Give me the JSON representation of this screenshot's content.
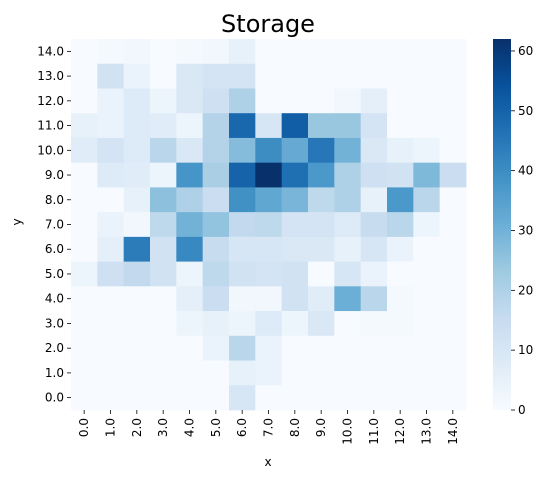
{
  "chart_data": {
    "type": "heatmap",
    "title": "Storage",
    "xlabel": "x",
    "ylabel": "y",
    "x": [
      "0.0",
      "1.0",
      "2.0",
      "3.0",
      "4.0",
      "5.0",
      "6.0",
      "7.0",
      "8.0",
      "9.0",
      "10.0",
      "11.0",
      "12.0",
      "13.0",
      "14.0"
    ],
    "y": [
      "14.0",
      "13.0",
      "12.0",
      "11.0",
      "10.0",
      "9.0",
      "8.0",
      "7.0",
      "6.0",
      "5.0",
      "4.0",
      "3.0",
      "2.0",
      "1.0",
      "0.0"
    ],
    "values": [
      [
        0,
        1,
        2,
        0,
        1,
        2,
        5,
        0,
        0,
        0,
        0,
        0,
        0,
        0,
        0
      ],
      [
        0,
        12,
        4,
        0,
        9,
        11,
        11,
        0,
        0,
        0,
        0,
        0,
        0,
        0,
        0
      ],
      [
        0,
        4,
        8,
        3,
        9,
        13,
        20,
        0,
        0,
        0,
        2,
        6,
        0,
        0,
        0
      ],
      [
        5,
        4,
        8,
        7,
        3,
        19,
        49,
        10,
        51,
        24,
        24,
        11,
        0,
        0,
        0
      ],
      [
        7,
        11,
        8,
        18,
        9,
        19,
        27,
        40,
        32,
        45,
        30,
        9,
        5,
        3,
        0
      ],
      [
        0,
        8,
        7,
        3,
        38,
        21,
        50,
        62,
        47,
        37,
        20,
        13,
        12,
        28,
        14
      ],
      [
        0,
        0,
        5,
        26,
        20,
        14,
        39,
        33,
        29,
        17,
        20,
        5,
        37,
        18,
        0
      ],
      [
        0,
        4,
        2,
        17,
        30,
        25,
        16,
        17,
        11,
        11,
        8,
        15,
        18,
        3,
        0
      ],
      [
        0,
        6,
        44,
        12,
        41,
        15,
        10,
        10,
        9,
        9,
        5,
        10,
        4,
        0,
        0
      ],
      [
        3,
        13,
        16,
        12,
        3,
        17,
        12,
        11,
        12,
        0,
        10,
        4,
        0,
        0,
        0
      ],
      [
        0,
        0,
        0,
        0,
        6,
        14,
        2,
        2,
        12,
        7,
        31,
        18,
        1,
        0,
        0
      ],
      [
        0,
        0,
        0,
        0,
        3,
        5,
        3,
        8,
        3,
        9,
        0,
        1,
        1,
        0,
        0
      ],
      [
        0,
        0,
        0,
        0,
        0,
        4,
        18,
        4,
        0,
        0,
        0,
        0,
        0,
        0,
        0
      ],
      [
        0,
        0,
        0,
        0,
        0,
        0,
        5,
        4,
        0,
        0,
        0,
        0,
        0,
        0,
        0
      ],
      [
        0,
        0,
        0,
        0,
        0,
        0,
        10,
        0,
        0,
        0,
        0,
        0,
        0,
        0,
        0
      ]
    ],
    "colormap": "Blues",
    "vmin": 0,
    "vmax": 62,
    "colorbar_ticks": [
      0,
      10,
      20,
      30,
      40,
      50,
      60
    ],
    "grid": false,
    "colorbar": "right"
  }
}
